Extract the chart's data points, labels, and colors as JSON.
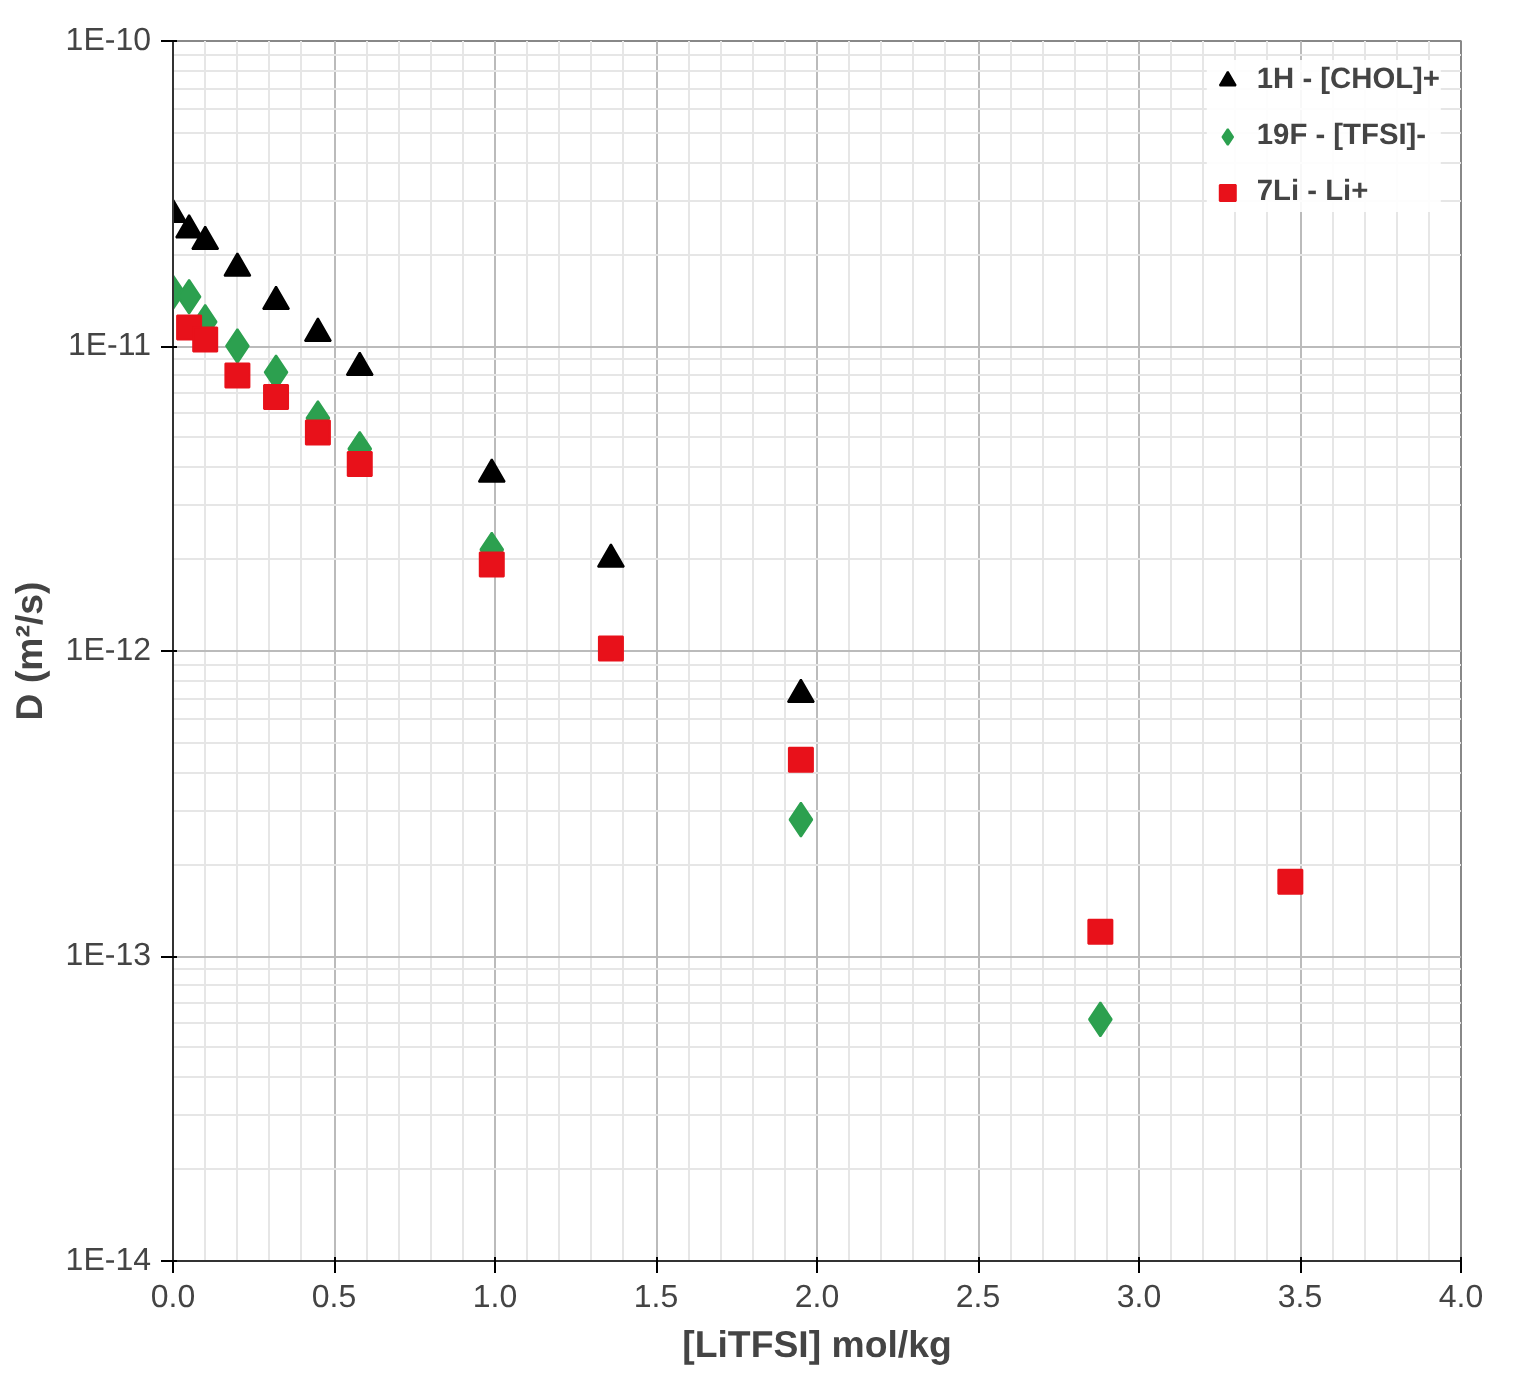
{
  "chart_data": {
    "type": "scatter",
    "xlabel": "[LiTFSI] mol/kg",
    "ylabel": "D (m²/s)",
    "log": "y",
    "grid": true,
    "legend": "top right",
    "xlim": [
      0,
      4
    ],
    "xticks": [
      {
        "value": 0,
        "label": "0.0"
      },
      {
        "value": 0.5,
        "label": "0.5"
      },
      {
        "value": 1,
        "label": "1.0"
      },
      {
        "value": 1.5,
        "label": "1.5"
      },
      {
        "value": 2,
        "label": "2.0"
      },
      {
        "value": 2.5,
        "label": "2.5"
      },
      {
        "value": 3,
        "label": "3.0"
      },
      {
        "value": 3.5,
        "label": "3.5"
      },
      {
        "value": 4,
        "label": "4.0"
      }
    ],
    "ylim": [
      1e-14,
      1e-10
    ],
    "yticks": [
      {
        "value": 1e-14,
        "label": "1E-14"
      },
      {
        "value": 1e-13,
        "label": "1E-13"
      },
      {
        "value": 1e-12,
        "label": "1E-12"
      },
      {
        "value": 1e-11,
        "label": "1E-11"
      },
      {
        "value": 1e-10,
        "label": "1E-10"
      }
    ],
    "series": [
      {
        "name": "1H - [CHOL]+",
        "color": "#000000",
        "marker": "triangle",
        "x": [
          0,
          0.05,
          0.1,
          0.2,
          0.32,
          0.45,
          0.58,
          0.99,
          1.36,
          1.95
        ],
        "values": [
          2.7e-11,
          2.4e-11,
          2.2e-11,
          1.8e-11,
          1.4e-11,
          1.1e-11,
          8.5e-12,
          3.8e-12,
          2e-12,
          7.2e-13
        ]
      },
      {
        "name": "19F - [TFSI]-",
        "color": "#2ca04f",
        "marker": "diamond",
        "x": [
          0,
          0.05,
          0.1,
          0.2,
          0.32,
          0.45,
          0.58,
          0.99,
          1.36,
          1.95,
          2.88
        ],
        "values": [
          1.5e-11,
          1.45e-11,
          1.2e-11,
          1e-11,
          8.2e-12,
          5.8e-12,
          4.6e-12,
          2.15e-12,
          null,
          2.8e-13,
          6.2e-14
        ]
      },
      {
        "name": "7Li - Li+",
        "color": "#e8111a",
        "marker": "square",
        "x": [
          0.05,
          0.1,
          0.2,
          0.32,
          0.45,
          0.58,
          0.99,
          1.36,
          1.95,
          2.88,
          3.47
        ],
        "values": [
          1.15e-11,
          1.05e-11,
          8e-12,
          6.8e-12,
          5.2e-12,
          4.1e-12,
          1.92e-12,
          1.02e-12,
          4.4e-13,
          1.2e-13,
          1.75e-13
        ]
      }
    ]
  }
}
